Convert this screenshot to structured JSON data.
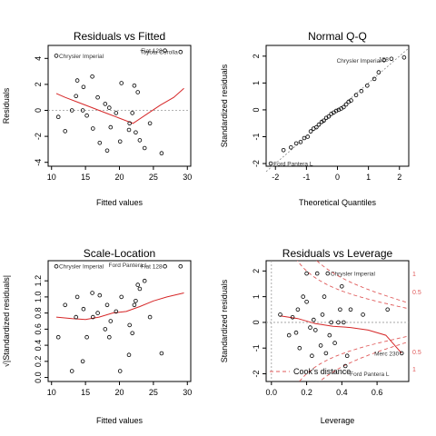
{
  "chart_data": [
    {
      "type": "scatter",
      "title": "Residuals vs Fitted",
      "xlabel": "Fitted values",
      "ylabel": "Residuals",
      "xlim": [
        9.5,
        30.5
      ],
      "ylim": [
        -4.3,
        5.0
      ],
      "xticks": [
        10,
        15,
        20,
        25,
        30
      ],
      "yticks": [
        -4,
        -2,
        0,
        2,
        4
      ],
      "reference_line": 0,
      "points": [
        [
          10.7,
          4.2
        ],
        [
          11.0,
          -0.5
        ],
        [
          12.0,
          -1.6
        ],
        [
          13.0,
          0.0
        ],
        [
          13.6,
          1.1
        ],
        [
          13.8,
          2.3
        ],
        [
          14.6,
          0.0
        ],
        [
          14.7,
          1.8
        ],
        [
          15.2,
          -0.4
        ],
        [
          16.0,
          2.6
        ],
        [
          16.1,
          -1.4
        ],
        [
          16.8,
          1.0
        ],
        [
          17.1,
          -2.5
        ],
        [
          17.9,
          0.5
        ],
        [
          18.2,
          -3.1
        ],
        [
          18.5,
          0.2
        ],
        [
          18.7,
          -1.3
        ],
        [
          19.5,
          -0.2
        ],
        [
          20.1,
          -2.4
        ],
        [
          20.3,
          2.1
        ],
        [
          21.4,
          -1.5
        ],
        [
          21.5,
          -1.0
        ],
        [
          21.9,
          -0.2
        ],
        [
          22.2,
          1.9
        ],
        [
          22.4,
          -1.7
        ],
        [
          22.7,
          1.4
        ],
        [
          23.0,
          -2.3
        ],
        [
          23.7,
          -2.9
        ],
        [
          24.5,
          -1.0
        ],
        [
          26.2,
          -3.3
        ],
        [
          26.7,
          4.6
        ],
        [
          29.0,
          4.5
        ]
      ],
      "smooth": [
        [
          10.7,
          1.3
        ],
        [
          12,
          1.0
        ],
        [
          14,
          0.6
        ],
        [
          16,
          0.2
        ],
        [
          18,
          -0.2
        ],
        [
          20,
          -0.6
        ],
        [
          22,
          -1.0
        ],
        [
          24,
          -0.3
        ],
        [
          26,
          0.4
        ],
        [
          28,
          1.0
        ],
        [
          29.5,
          1.7
        ]
      ],
      "annotations": [
        {
          "label": "Chrysler Imperial",
          "x": 10.7,
          "y": 4.2
        },
        {
          "label": "Fiat 128",
          "x": 26.7,
          "y": 4.6
        },
        {
          "label": "Toyota Corolla",
          "x": 29.0,
          "y": 4.5
        }
      ],
      "point_labels": {
        "Chrysler Imperial": 0,
        "Fiat 128": 30,
        "Toyota Corolla": 31
      }
    },
    {
      "type": "scatter",
      "title": "Normal Q-Q",
      "xlabel": "Theoretical Quantiles",
      "ylabel": "Standardized residuals",
      "xlim": [
        -2.3,
        2.3
      ],
      "ylim": [
        -2.1,
        2.4
      ],
      "xticks": [
        -2,
        -1,
        0,
        1,
        2
      ],
      "yticks": [
        -2,
        -1,
        0,
        1,
        2
      ],
      "points": [
        [
          -2.15,
          -2.0
        ],
        [
          -1.74,
          -1.5
        ],
        [
          -1.5,
          -1.4
        ],
        [
          -1.33,
          -1.25
        ],
        [
          -1.19,
          -1.2
        ],
        [
          -1.07,
          -1.05
        ],
        [
          -0.96,
          -1.0
        ],
        [
          -0.86,
          -0.8
        ],
        [
          -0.77,
          -0.7
        ],
        [
          -0.68,
          -0.65
        ],
        [
          -0.6,
          -0.55
        ],
        [
          -0.51,
          -0.45
        ],
        [
          -0.44,
          -0.4
        ],
        [
          -0.36,
          -0.3
        ],
        [
          -0.28,
          -0.25
        ],
        [
          -0.2,
          -0.15
        ],
        [
          -0.12,
          -0.1
        ],
        [
          -0.04,
          -0.04
        ],
        [
          0.04,
          0.0
        ],
        [
          0.12,
          0.05
        ],
        [
          0.2,
          0.1
        ],
        [
          0.28,
          0.2
        ],
        [
          0.36,
          0.3
        ],
        [
          0.44,
          0.35
        ],
        [
          0.6,
          0.55
        ],
        [
          0.77,
          0.7
        ],
        [
          0.96,
          0.9
        ],
        [
          1.19,
          1.15
        ],
        [
          1.33,
          1.4
        ],
        [
          1.5,
          1.85
        ],
        [
          1.74,
          1.9
        ],
        [
          2.15,
          1.95
        ]
      ],
      "qq_line": [
        [
          -2.3,
          -2.3
        ],
        [
          2.3,
          2.3
        ]
      ],
      "annotations": [
        {
          "label": "Ford Pantera L",
          "x": -2.15,
          "y": -2.0
        },
        {
          "label": "Chrysler Imperial",
          "x": 1.5,
          "y": 1.85
        },
        {
          "label": "128",
          "x": 1.74,
          "y": 1.9
        }
      ],
      "point_labels": {
        "Ford Pantera L": 0,
        "Chrysler Imperial": 29,
        "128": 30
      }
    },
    {
      "type": "scatter",
      "title": "Scale-Location",
      "xlabel": "Fitted values",
      "ylabel": "√|Standardized residuals|",
      "xlim": [
        9.5,
        30.5
      ],
      "ylim": [
        -0.05,
        1.45
      ],
      "xticks": [
        10,
        15,
        20,
        25,
        30
      ],
      "yticks": [
        0.0,
        0.2,
        0.4,
        0.6,
        0.8,
        1.0,
        1.2
      ],
      "points": [
        [
          10.7,
          1.38
        ],
        [
          11.0,
          0.5
        ],
        [
          12.0,
          0.9
        ],
        [
          13.0,
          0.08
        ],
        [
          13.6,
          0.75
        ],
        [
          13.8,
          1.0
        ],
        [
          14.6,
          0.2
        ],
        [
          14.7,
          0.85
        ],
        [
          15.2,
          0.5
        ],
        [
          16.0,
          1.05
        ],
        [
          16.1,
          0.75
        ],
        [
          16.8,
          0.8
        ],
        [
          17.1,
          1.02
        ],
        [
          17.9,
          0.6
        ],
        [
          18.2,
          0.9
        ],
        [
          18.5,
          0.5
        ],
        [
          18.7,
          0.7
        ],
        [
          19.5,
          0.82
        ],
        [
          20.1,
          0.08
        ],
        [
          20.3,
          1.0
        ],
        [
          21.4,
          0.28
        ],
        [
          21.5,
          0.65
        ],
        [
          21.9,
          0.55
        ],
        [
          22.2,
          0.9
        ],
        [
          22.4,
          0.95
        ],
        [
          22.7,
          1.15
        ],
        [
          23.0,
          1.1
        ],
        [
          23.7,
          1.2
        ],
        [
          24.5,
          0.75
        ],
        [
          26.2,
          0.3
        ],
        [
          26.7,
          1.38
        ],
        [
          29.0,
          1.38
        ]
      ],
      "smooth": [
        [
          10.7,
          0.75
        ],
        [
          13,
          0.73
        ],
        [
          15,
          0.72
        ],
        [
          17,
          0.75
        ],
        [
          19,
          0.8
        ],
        [
          21,
          0.82
        ],
        [
          23,
          0.88
        ],
        [
          25,
          0.95
        ],
        [
          27,
          1.0
        ],
        [
          29.5,
          1.05
        ]
      ],
      "annotations": [
        {
          "label": "Chrysler Imperial",
          "x": 10.7,
          "y": 1.38
        },
        {
          "label": "Ford Pantera L",
          "x": 18.0,
          "y": 1.4
        },
        {
          "label": "Fiat 128",
          "x": 26.7,
          "y": 1.38
        }
      ],
      "point_labels": {
        "Chrysler Imperial": 0,
        "Fiat 128": 30
      }
    },
    {
      "type": "scatter",
      "title": "Residuals vs Leverage",
      "xlabel": "Leverage",
      "ylabel": "Standardized residuals",
      "xlim": [
        -0.03,
        0.78
      ],
      "ylim": [
        -2.3,
        2.4
      ],
      "xticks": [
        0.0,
        0.2,
        0.4,
        0.6
      ],
      "yticks": [
        -2,
        -1,
        0,
        1,
        2
      ],
      "reference_line": 0,
      "points": [
        [
          0.05,
          0.3
        ],
        [
          0.1,
          -0.5
        ],
        [
          0.12,
          0.2
        ],
        [
          0.14,
          -0.4
        ],
        [
          0.15,
          0.5
        ],
        [
          0.16,
          -1.0
        ],
        [
          0.18,
          1.0
        ],
        [
          0.2,
          1.9
        ],
        [
          0.2,
          0.8
        ],
        [
          0.22,
          -0.2
        ],
        [
          0.23,
          -1.3
        ],
        [
          0.24,
          0.1
        ],
        [
          0.25,
          -0.3
        ],
        [
          0.26,
          1.9
        ],
        [
          0.28,
          -0.9
        ],
        [
          0.29,
          0.3
        ],
        [
          0.3,
          1.0
        ],
        [
          0.31,
          -1.2
        ],
        [
          0.32,
          1.9
        ],
        [
          0.33,
          -0.5
        ],
        [
          0.34,
          0.0
        ],
        [
          0.36,
          -0.8
        ],
        [
          0.38,
          0.0
        ],
        [
          0.39,
          0.5
        ],
        [
          0.4,
          1.4
        ],
        [
          0.41,
          0.0
        ],
        [
          0.42,
          -1.7
        ],
        [
          0.43,
          -1.3
        ],
        [
          0.45,
          0.5
        ],
        [
          0.52,
          0.3
        ],
        [
          0.66,
          0.5
        ],
        [
          0.74,
          -1.2
        ]
      ],
      "smooth": [
        [
          0.05,
          0.25
        ],
        [
          0.15,
          0.15
        ],
        [
          0.25,
          -0.05
        ],
        [
          0.35,
          -0.15
        ],
        [
          0.45,
          -0.2
        ],
        [
          0.55,
          -0.3
        ],
        [
          0.65,
          -0.5
        ],
        [
          0.74,
          -1.2
        ]
      ],
      "annotations": [
        {
          "label": "Chrysler Imperial",
          "x": 0.32,
          "y": 1.9
        },
        {
          "label": "Merc 230",
          "x": 0.74,
          "y": -1.2
        },
        {
          "label": "Ford Pantera L",
          "x": 0.43,
          "y": -2.0
        }
      ],
      "point_labels": {
        "Chrysler Imperial": 18,
        "Merc 230": 31
      },
      "cooks_distance": {
        "legend": "Cook's distance",
        "levels": [
          "1",
          "0.5",
          "0.5",
          "1"
        ]
      }
    }
  ]
}
